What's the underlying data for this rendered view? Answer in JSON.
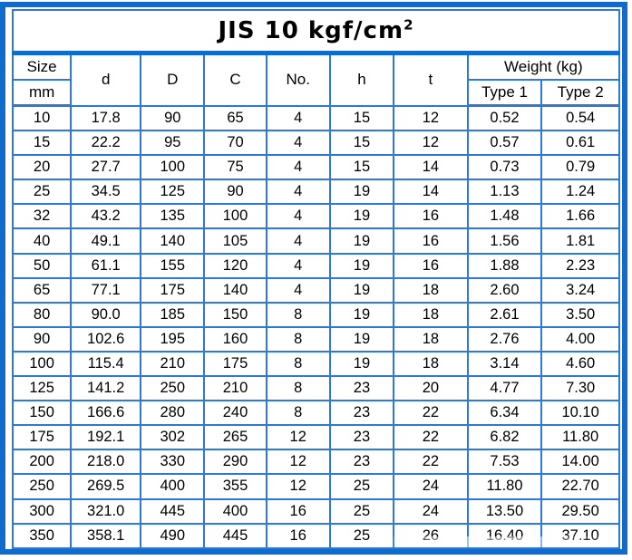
{
  "title": {
    "text": "JIS 10 kgf/cm",
    "superscript": "2"
  },
  "colors": {
    "frame_blue": "#0f6bce",
    "grid_blue": "#2e79d6",
    "text": "#000000",
    "background": "#ffffff"
  },
  "header": {
    "size_label": "Size",
    "size_unit": "mm",
    "columns": [
      "d",
      "D",
      "C",
      "No.",
      "h",
      "t"
    ],
    "weight_label": "Weight (kg)",
    "weight_types": [
      "Type 1",
      "Type 2"
    ],
    "cell_keys": [
      "size",
      "d",
      "D",
      "C",
      "no",
      "h",
      "t",
      "weight-type1",
      "weight-type2"
    ]
  },
  "rows": [
    [
      "10",
      "17.8",
      "90",
      "65",
      "4",
      "15",
      "12",
      "0.52",
      "0.54"
    ],
    [
      "15",
      "22.2",
      "95",
      "70",
      "4",
      "15",
      "12",
      "0.57",
      "0.61"
    ],
    [
      "20",
      "27.7",
      "100",
      "75",
      "4",
      "15",
      "14",
      "0.73",
      "0.79"
    ],
    [
      "25",
      "34.5",
      "125",
      "90",
      "4",
      "19",
      "14",
      "1.13",
      "1.24"
    ],
    [
      "32",
      "43.2",
      "135",
      "100",
      "4",
      "19",
      "16",
      "1.48",
      "1.66"
    ],
    [
      "40",
      "49.1",
      "140",
      "105",
      "4",
      "19",
      "16",
      "1.56",
      "1.81"
    ],
    [
      "50",
      "61.1",
      "155",
      "120",
      "4",
      "19",
      "16",
      "1.88",
      "2.23"
    ],
    [
      "65",
      "77.1",
      "175",
      "140",
      "4",
      "19",
      "18",
      "2.60",
      "3.24"
    ],
    [
      "80",
      "90.0",
      "185",
      "150",
      "8",
      "19",
      "18",
      "2.61",
      "3.50"
    ],
    [
      "90",
      "102.6",
      "195",
      "160",
      "8",
      "19",
      "18",
      "2.76",
      "4.00"
    ],
    [
      "100",
      "115.4",
      "210",
      "175",
      "8",
      "19",
      "18",
      "3.14",
      "4.60"
    ],
    [
      "125",
      "141.2",
      "250",
      "210",
      "8",
      "23",
      "20",
      "4.77",
      "7.30"
    ],
    [
      "150",
      "166.6",
      "280",
      "240",
      "8",
      "23",
      "22",
      "6.34",
      "10.10"
    ],
    [
      "175",
      "192.1",
      "302",
      "265",
      "12",
      "23",
      "22",
      "6.82",
      "11.80"
    ],
    [
      "200",
      "218.0",
      "330",
      "290",
      "12",
      "23",
      "22",
      "7.53",
      "14.00"
    ],
    [
      "250",
      "269.5",
      "400",
      "355",
      "12",
      "25",
      "24",
      "11.80",
      "22.70"
    ],
    [
      "300",
      "321.0",
      "445",
      "400",
      "16",
      "25",
      "24",
      "13.50",
      "29.50"
    ],
    [
      "350",
      "358.1",
      "490",
      "445",
      "16",
      "25",
      "26",
      "16.40",
      "37.10"
    ]
  ]
}
